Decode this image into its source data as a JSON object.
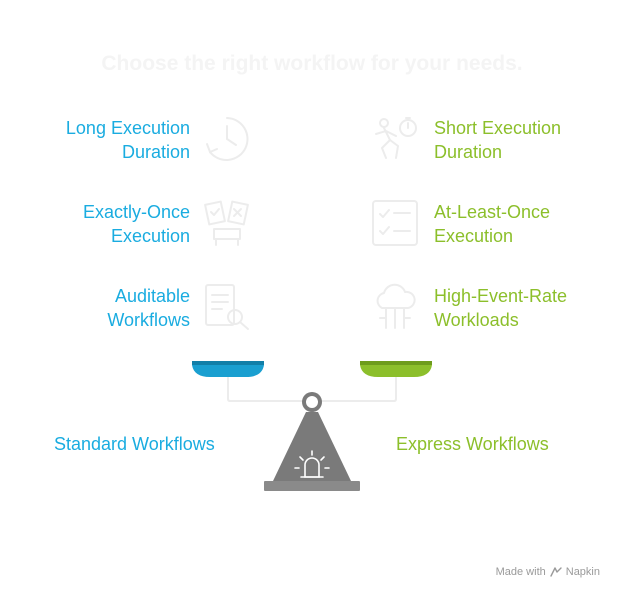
{
  "title": "Choose the right workflow for your needs.",
  "left_side": {
    "name": "Standard Workflows",
    "color": "#1aace0",
    "features": [
      {
        "label": "Long Execution\nDuration",
        "icon": "clock-icon"
      },
      {
        "label": "Exactly-Once\nExecution",
        "icon": "checklist-board-icon"
      },
      {
        "label": "Auditable\nWorkflows",
        "icon": "document-search-icon"
      }
    ]
  },
  "right_side": {
    "name": "Express Workflows",
    "color": "#8cbf2b",
    "features": [
      {
        "label": "Short Execution\nDuration",
        "icon": "runner-stopwatch-icon"
      },
      {
        "label": "At-Least-Once\nExecution",
        "icon": "checkbox-list-icon"
      },
      {
        "label": "High-Event-Rate\nWorkloads",
        "icon": "cloud-network-icon"
      }
    ]
  },
  "footer": {
    "text": "Made with",
    "brand": "Napkin"
  }
}
